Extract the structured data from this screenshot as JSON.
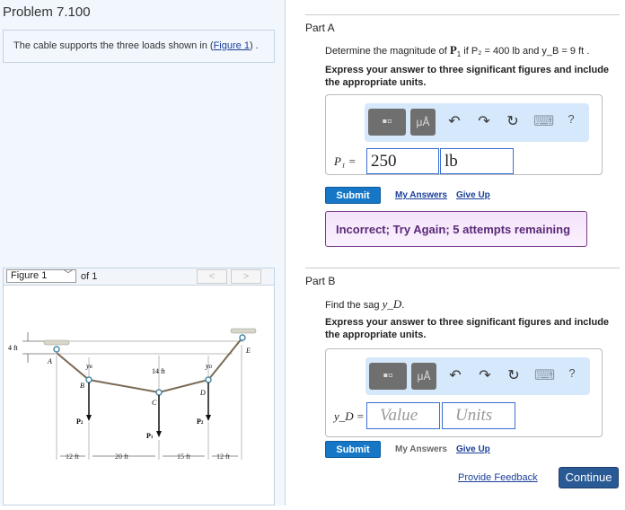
{
  "problem": {
    "title": "Problem 7.100",
    "statement": "The cable supports the three loads shown in (",
    "figure_link": "Figure 1",
    "statement_end": ") ."
  },
  "figure": {
    "selector": "Figure 1",
    "of": "of 1",
    "prev": "<",
    "next": ">",
    "labels": {
      "a": "A",
      "b": "B",
      "c": "C",
      "d": "D",
      "e": "E",
      "yb": "y",
      "yb_sub": "B",
      "yd": "y",
      "yd_sub": "D",
      "h14": "14 ft",
      "h4": "4 ft",
      "p1": "P",
      "p1_sub": "1",
      "p2": "P",
      "p2_sub": "2",
      "d1": "12 ft",
      "d2": "20 ft",
      "d3": "15 ft",
      "d4": "12 ft"
    }
  },
  "partA": {
    "label": "Part A",
    "question_pre": "Determine the magnitude of ",
    "question_mid": "P",
    "question_sub": "1",
    "question_post": " if P₂ = 400  lb and y_B = 9  ft .",
    "instructions": "Express your answer to three significant figures and include the appropriate units.",
    "toolbar": {
      "units_btn": "μÅ",
      "undo": "↶",
      "redo": "↷",
      "reset": "↻",
      "keyboard": "⌨",
      "help": "?"
    },
    "var_label": "P₁ =",
    "value": "250",
    "units": "lb",
    "submit": "Submit",
    "my_answers": "My Answers",
    "give_up": "Give Up",
    "feedback": "Incorrect; Try Again; 5 attempts remaining"
  },
  "partB": {
    "label": "Part B",
    "question": "Find the sag ",
    "question_var": "y_D",
    "question_end": ".",
    "instructions": "Express your answer to three significant figures and include the appropriate units.",
    "toolbar": {
      "units_btn": "μÅ",
      "undo": "↶",
      "redo": "↷",
      "reset": "↻",
      "keyboard": "⌨",
      "help": "?"
    },
    "var_label": "y_D =",
    "value_placeholder": "Value",
    "units_placeholder": "Units",
    "submit": "Submit",
    "my_answers": "My Answers",
    "give_up": "Give Up"
  },
  "footer": {
    "provide_feedback": "Provide Feedback",
    "continue": "Continue"
  },
  "colors": {
    "accent": "#1677c6",
    "continue": "#2a5a95",
    "feedback_text": "#5a2a78",
    "toolbar_bg": "#d6e8fb"
  }
}
